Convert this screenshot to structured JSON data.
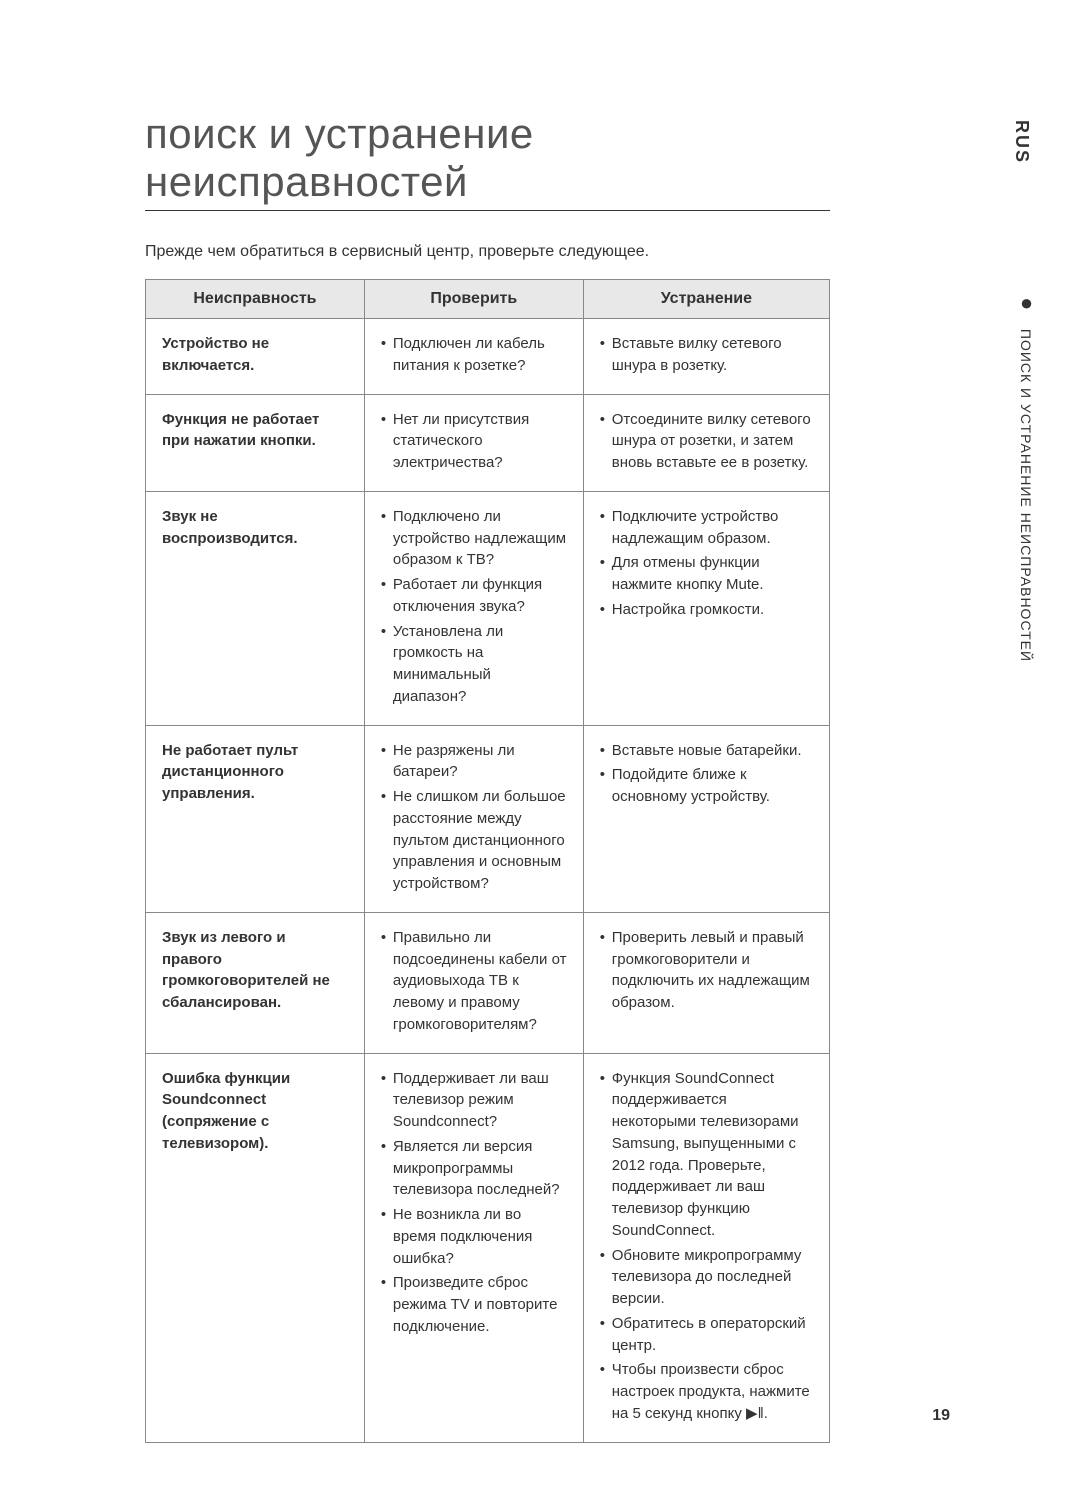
{
  "title": "поиск и устранение неисправностей",
  "intro": "Прежде чем обратиться в сервисный центр, проверьте следующее.",
  "side_lang": "RUS",
  "side_section_dot": "●",
  "side_section_text": " ПОИСК И УСТРАНЕНИЕ НЕИСПРАВНОСТЕЙ",
  "page_number": "19",
  "headers": {
    "symptom": "Неисправность",
    "check": "Проверить",
    "solution": "Устранение"
  },
  "rows": {
    "r0": {
      "symptom": "Устройство не включается.",
      "check": {
        "i0": "Подключен ли кабель питания к розетке?"
      },
      "solution": {
        "i0": "Вставьте вилку сетевого шнура в розетку."
      }
    },
    "r1": {
      "symptom": "Функция не работает при нажатии кнопки.",
      "check": {
        "i0": "Нет ли присутствия статического электричества?"
      },
      "solution": {
        "i0": "Отсоедините вилку сетевого шнура от розетки, и затем вновь вставьте ее в розетку."
      }
    },
    "r2": {
      "symptom": "Звук не воспроизводится.",
      "check": {
        "i0": "Подключено ли устройство надлежащим образом к ТВ?",
        "i1": "Работает ли функция отключения звука?",
        "i2": "Установлена ли громкость на минимальный диапазон?"
      },
      "solution": {
        "i0": "Подключите устройство надлежащим образом.",
        "i1": "Для отмены функции нажмите кнопку Mute.",
        "i2": "Настройка громкости."
      }
    },
    "r3": {
      "symptom": "Не работает пульт дистанционного управления.",
      "check": {
        "i0": "Не разряжены ли батареи?",
        "i1": "Не слишком ли большое расстояние между пультом дистанционного управления и основным устройством?"
      },
      "solution": {
        "i0": "Вставьте новые батарейки.",
        "i1": "Подойдите ближе к основному устройству."
      }
    },
    "r4": {
      "symptom": "Звук из левого и правого громкоговорителей не сбалансирован.",
      "check": {
        "i0": "Правильно ли подсоединены кабели от аудиовыхода ТВ к левому и правому громкоговорителям?"
      },
      "solution": {
        "i0": "Проверить левый и правый громкоговорители и подключить их надлежащим образом."
      }
    },
    "r5": {
      "symptom": "Ошибка функции Soundconnect (сопряжение с телевизором).",
      "check": {
        "i0": "Поддерживает ли ваш телевизор режим Soundconnect?",
        "i1": "Является ли версия микропрограммы телевизора последней?",
        "i2": "Не возникла ли во время подключения ошибка?",
        "i3": "Произведите сброс режима TV и повторите подключение."
      },
      "solution": {
        "i0": "Функция SoundConnect поддерживается некоторыми телевизорами Samsung, выпущенными с 2012 года. Проверьте, поддерживает ли ваш телевизор функцию SoundConnect.",
        "i1": "Обновите микропрограмму телевизора до последней версии.",
        "i2": "Обратитесь в операторский центр.",
        "i3_prefix": "Чтобы произвести сброс настроек продукта, нажмите на 5 секунд кнопку ",
        "i3_icon": "▶ǁ",
        "i3_suffix": "."
      }
    }
  }
}
